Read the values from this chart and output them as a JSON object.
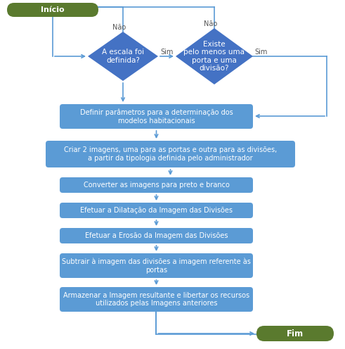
{
  "bg_color": "#ffffff",
  "green_color": "#5a7a2e",
  "diamond_color": "#4472c4",
  "box_color": "#5b9bd5",
  "box_light_color": "#aec6e8",
  "arrow_color": "#5b9bd5",
  "text_color": "#ffffff",
  "inicio_text": "Início",
  "fim_text": "Fim",
  "diamond1_text": "A escala foi\ndefinida?",
  "diamond2_text": "Existe\npelo menos uma\nporta e uma\ndivisão?",
  "box1_text": "Definir parâmetros para a determinação dos\nmodelos habitacionais",
  "box2_text": "Criar 2 imagens, uma para as portas e outra para as divisões,\na partir da tipologia definida pelo administrador",
  "box3_text": "Converter as imagens para preto e branco",
  "box4_text": "Efetuar a Dilatação da Imagem das Divisões",
  "box5_text": "Efetuar a Erosão da Imagem das Divisões",
  "box6_text": "Subtrair à imagem das divisões a imagem referente às\nportas",
  "box7_text": "Armazenar a Imagem resultante e libertar os recursos\nutilizados pelas Imagens anteriores",
  "label_nao": "Não",
  "label_sim": "Sim"
}
